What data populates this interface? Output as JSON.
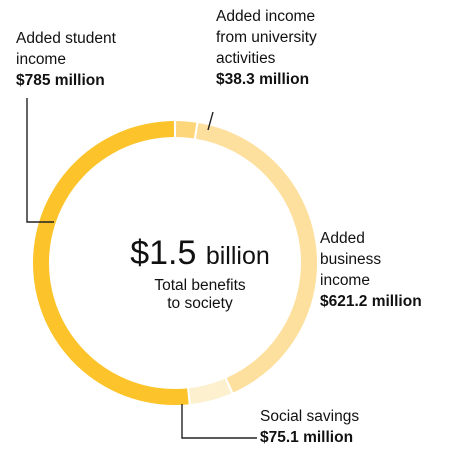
{
  "chart_data": {
    "type": "pie",
    "variant": "donut",
    "center": {
      "amount": "$1.5",
      "unit": "billion",
      "caption_line1": "Total benefits",
      "caption_line2": "to society"
    },
    "slices": [
      {
        "key": "student",
        "label_lines": [
          "Added student",
          "income"
        ],
        "value_text": "$785 million",
        "value": 785,
        "color": "#FCC42A"
      },
      {
        "key": "univ",
        "label_lines": [
          "Added income",
          "from university",
          "activities"
        ],
        "value_text": "$38.3 million",
        "value": 38.3,
        "color": "#FDD67A"
      },
      {
        "key": "business",
        "label_lines": [
          "Added",
          "business",
          "income"
        ],
        "value_text": "$621.2 million",
        "value": 621.2,
        "color": "#FEE09E"
      },
      {
        "key": "social",
        "label_lines": [
          "Social savings"
        ],
        "value_text": "$75.1 million",
        "value": 75.1,
        "color": "#FDF0CF"
      }
    ]
  }
}
